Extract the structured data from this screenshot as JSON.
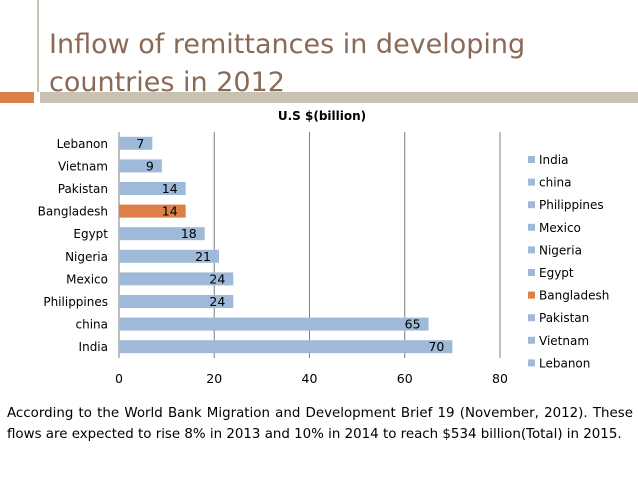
{
  "slide": {
    "title_line1": "Inflow of remittances in developing",
    "title_line2": "countries in 2012",
    "footnote_line1": "According to the World Bank Migration and Development Brief 19 (November, 2012).",
    "footnote_line2": "These flows are expected to rise 8% in 2013 and 10% in 2014 to reach $534",
    "footnote_line3": "billion(Total) in 2015."
  },
  "colors": {
    "title": "#8a6a56",
    "accent": "#dd8047",
    "rule": "#c9c2b3",
    "bar": "#9fbad8",
    "highlight": "#dd8047"
  },
  "chart_data": {
    "type": "bar",
    "orientation": "horizontal",
    "title": "U.S $(billion)",
    "categories": [
      "India",
      "china",
      "Philippines",
      "Mexico",
      "Nigeria",
      "Egypt",
      "Bangladesh",
      "Pakistan",
      "Vietnam",
      "Lebanon"
    ],
    "values": [
      70,
      65,
      24,
      24,
      21,
      18,
      14,
      14,
      9,
      7
    ],
    "highlight_category": "Bangladesh",
    "xlim": [
      0,
      80
    ],
    "xticks": [
      0,
      20,
      40,
      60,
      80
    ],
    "grid": true,
    "legend_position": "right"
  }
}
